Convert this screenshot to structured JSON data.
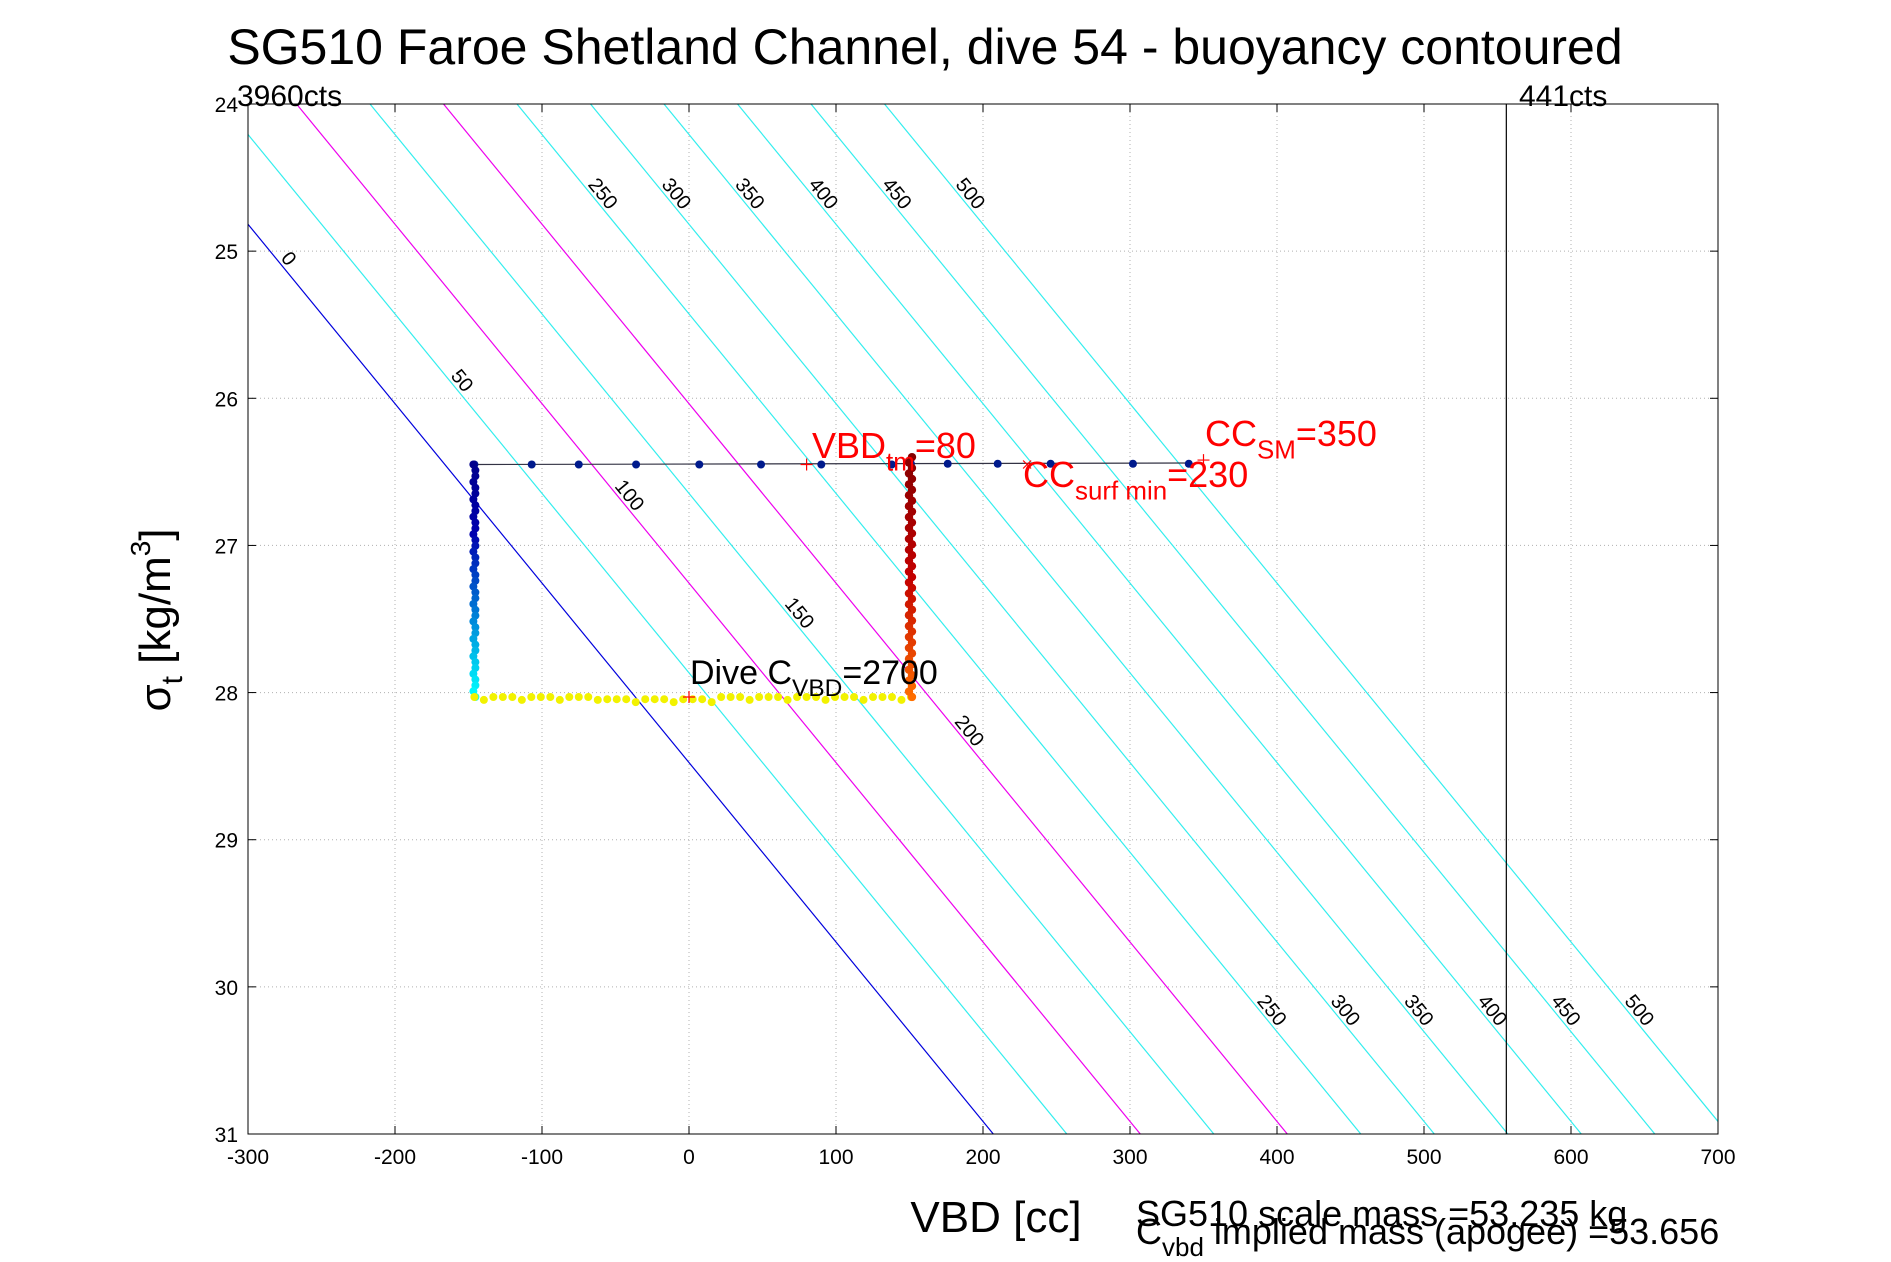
{
  "chart_data": {
    "type": "scatter",
    "title": "SG510 Faroe Shetland Channel, dive 54 - buoyancy contoured",
    "xlabel": "VBD [cc]",
    "ylabel": {
      "main": "σ",
      "sub": "t",
      "unit_pre": " [kg/m",
      "unit_sup": "3",
      "unit_post": "]"
    },
    "xlim": [
      -300,
      700
    ],
    "ylim": [
      24,
      31
    ],
    "y_reversed": true,
    "grid": "dotted",
    "x_ticks": [
      "-300",
      "-200",
      "-100",
      "0",
      "100",
      "200",
      "300",
      "400",
      "500",
      "600",
      "700"
    ],
    "y_ticks": [
      "24",
      "25",
      "26",
      "27",
      "28",
      "29",
      "30",
      "31"
    ],
    "corner_labels": {
      "left": "3960cts",
      "right": "441cts"
    },
    "max_vbd_line_x": 556,
    "contours": {
      "slope_cc_per_kgm3": 82,
      "ref_sigma": 25,
      "ref_vbd_at_zero": -285,
      "buoyancy_per_cc": 1,
      "levels": [
        0,
        50,
        100,
        150,
        200,
        250,
        300,
        350,
        400,
        450,
        500
      ],
      "colors": {
        "0": "#0000dd",
        "100": "#ee00ee",
        "200": "#ee00ee",
        "default": "#33eeee"
      },
      "top_labels": [
        "250",
        "300",
        "350",
        "400",
        "450",
        "500"
      ],
      "bottom_labels": [
        "250",
        "300",
        "350",
        "400",
        "450",
        "500"
      ],
      "left_labels": [
        "0",
        "50",
        "100",
        "150",
        "200"
      ]
    },
    "trace": {
      "top_sigma": 26.45,
      "bottom_sigma": 28.03,
      "left_vbd": -146,
      "right_vbd": 151,
      "surface_points_vbd": [
        -146,
        -107,
        -75,
        -36,
        7,
        49,
        90,
        138,
        151,
        176,
        210,
        246,
        302,
        340
      ]
    },
    "annotations": {
      "vbd_tm": {
        "pre": "VBD",
        "sub": "tm",
        "post": "=80",
        "color": "#ff0000"
      },
      "cc_sm": {
        "pre": "CC",
        "sub": "SM",
        "post": "=350",
        "color": "#ff0000"
      },
      "cc_surf": {
        "pre": "CC",
        "sub": "surf min",
        "post": "=230",
        "color": "#ff0000"
      },
      "dive_c": {
        "pre": "Dive C",
        "sub": "VBD",
        "post": "=2700",
        "color": "#000000"
      }
    },
    "footer": {
      "scale_mass": "SG510 scale mass =53.235 kg",
      "implied_pre": "C",
      "implied_sub": "vbd",
      "implied_post": " implied mass (apogee) =53.656"
    }
  }
}
